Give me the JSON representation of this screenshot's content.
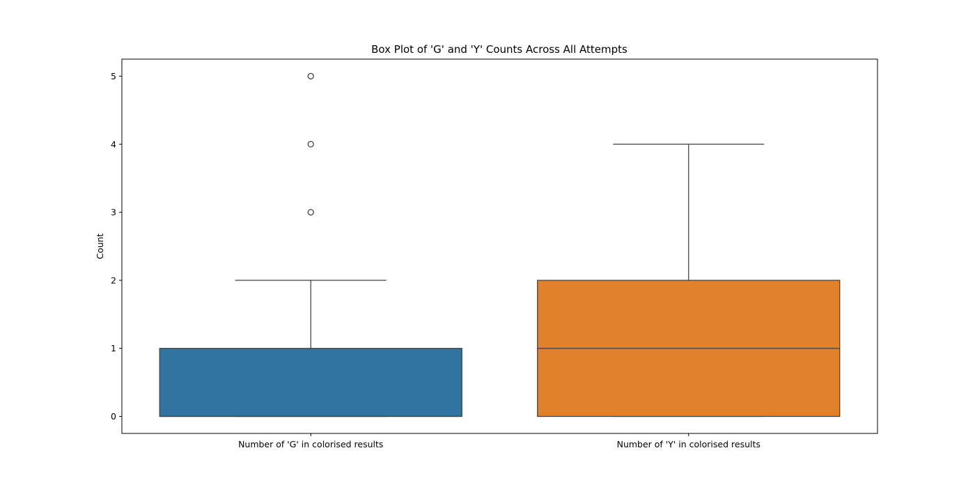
{
  "chart_data": {
    "type": "box",
    "title": "Box Plot of 'G' and 'Y' Counts Across All Attempts",
    "xlabel": "",
    "ylabel": "Count",
    "ylim": [
      -0.25,
      5.25
    ],
    "yticks": [
      0,
      1,
      2,
      3,
      4,
      5
    ],
    "ytick_labels": [
      "0",
      "1",
      "2",
      "3",
      "4",
      "5"
    ],
    "grid": false,
    "categories": [
      "Number of 'G' in colorised results",
      "Number of 'Y' in colorised results"
    ],
    "boxes": [
      {
        "category": "Number of 'G' in colorised results",
        "color": "#3274a1",
        "whisker_low": 0,
        "q1": 0,
        "median": 0,
        "q3": 1,
        "whisker_high": 2,
        "outliers": [
          3,
          4,
          5
        ]
      },
      {
        "category": "Number of 'Y' in colorised results",
        "color": "#e1812c",
        "whisker_low": 0,
        "q1": 0,
        "median": 1,
        "q3": 2,
        "whisker_high": 4,
        "outliers": []
      }
    ],
    "line_color": "#3f3f3f"
  }
}
